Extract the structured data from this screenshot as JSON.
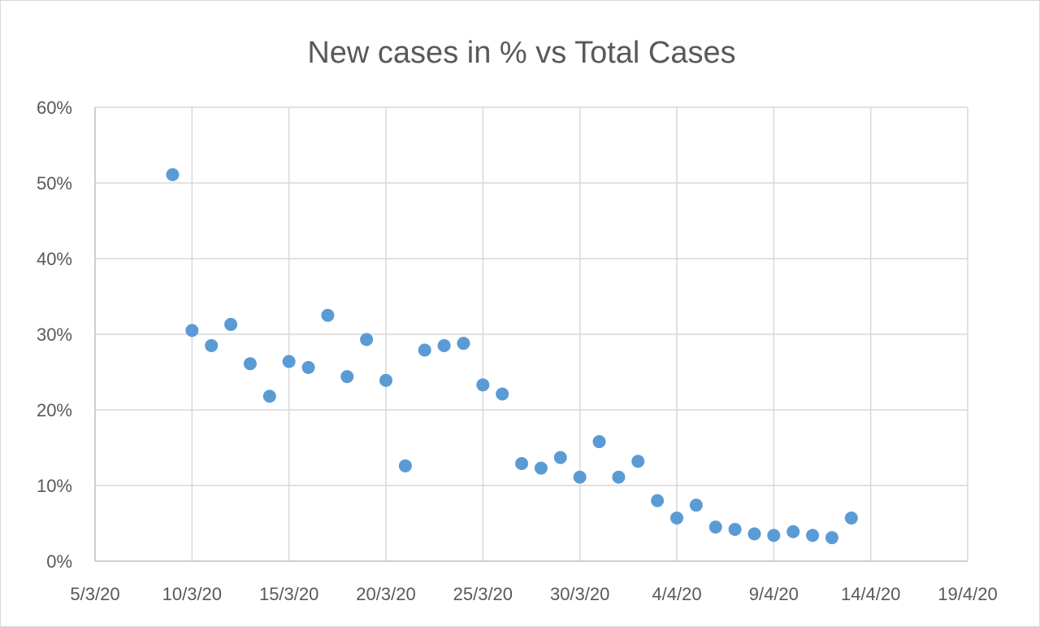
{
  "chart_data": {
    "type": "scatter",
    "title": "New cases in % vs Total Cases",
    "xlabel": "",
    "ylabel": "",
    "x_is_date": true,
    "xlim": [
      "2020-03-05",
      "2020-04-19"
    ],
    "ylim": [
      0,
      0.6
    ],
    "x_ticks": [
      "2020-03-05",
      "2020-03-10",
      "2020-03-15",
      "2020-03-20",
      "2020-03-25",
      "2020-03-30",
      "2020-04-04",
      "2020-04-09",
      "2020-04-14",
      "2020-04-19"
    ],
    "x_tick_labels": [
      "5/3/20",
      "10/3/20",
      "15/3/20",
      "20/3/20",
      "25/3/20",
      "30/3/20",
      "4/4/20",
      "9/4/20",
      "14/4/20",
      "19/4/20"
    ],
    "y_ticks": [
      0,
      0.1,
      0.2,
      0.3,
      0.4,
      0.5,
      0.6
    ],
    "y_tick_labels": [
      "0%",
      "10%",
      "20%",
      "30%",
      "40%",
      "50%",
      "60%"
    ],
    "grid": true,
    "legend": "none",
    "marker_color": "#5b9bd5",
    "series": [
      {
        "x": [
          "2020-03-09",
          "2020-03-10",
          "2020-03-11",
          "2020-03-12",
          "2020-03-13",
          "2020-03-14",
          "2020-03-15",
          "2020-03-16",
          "2020-03-17",
          "2020-03-18",
          "2020-03-19",
          "2020-03-20",
          "2020-03-21",
          "2020-03-22",
          "2020-03-23",
          "2020-03-24",
          "2020-03-25",
          "2020-03-26",
          "2020-03-27",
          "2020-03-28",
          "2020-03-29",
          "2020-03-30",
          "2020-03-31",
          "2020-04-01",
          "2020-04-02",
          "2020-04-03",
          "2020-04-04",
          "2020-04-05",
          "2020-04-06",
          "2020-04-07",
          "2020-04-08",
          "2020-04-09",
          "2020-04-10",
          "2020-04-11",
          "2020-04-12",
          "2020-04-13"
        ],
        "y": [
          0.511,
          0.305,
          0.285,
          0.313,
          0.261,
          0.218,
          0.264,
          0.256,
          0.325,
          0.244,
          0.293,
          0.239,
          0.126,
          0.279,
          0.285,
          0.288,
          0.233,
          0.221,
          0.129,
          0.123,
          0.137,
          0.111,
          0.158,
          0.111,
          0.132,
          0.08,
          0.057,
          0.074,
          0.045,
          0.042,
          0.036,
          0.034,
          0.039,
          0.034,
          0.031,
          0.057
        ]
      }
    ]
  }
}
